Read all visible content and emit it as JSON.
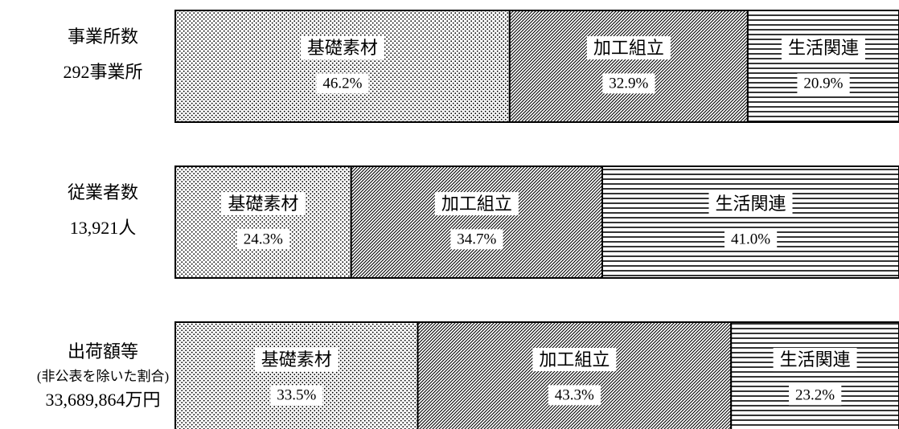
{
  "chart_data": {
    "type": "bar",
    "orientation": "horizontal",
    "stacked": true,
    "categories": [
      [
        "事業所数",
        "292事業所"
      ],
      [
        "従業者数",
        "13,921人"
      ],
      [
        "出荷額等",
        "(非公表を除いた割合)",
        "33,689,864万円"
      ]
    ],
    "xlim": [
      0,
      100
    ],
    "series": [
      {
        "name": "基礎素材",
        "pattern": "dots",
        "color": "#000000",
        "values": [
          46.2,
          24.3,
          33.5
        ],
        "value_labels": [
          "46.2%",
          "24.3%",
          "33.5%"
        ]
      },
      {
        "name": "加工組立",
        "pattern": "diagonal",
        "color": "#000000",
        "values": [
          32.9,
          34.7,
          43.3
        ],
        "value_labels": [
          "32.9%",
          "34.7%",
          "43.3%"
        ]
      },
      {
        "name": "生活関連",
        "pattern": "horizontal",
        "color": "#000000",
        "values": [
          20.9,
          41,
          23.2
        ],
        "value_labels": [
          "20.9%",
          "41.0%",
          "23.2%"
        ]
      }
    ]
  }
}
